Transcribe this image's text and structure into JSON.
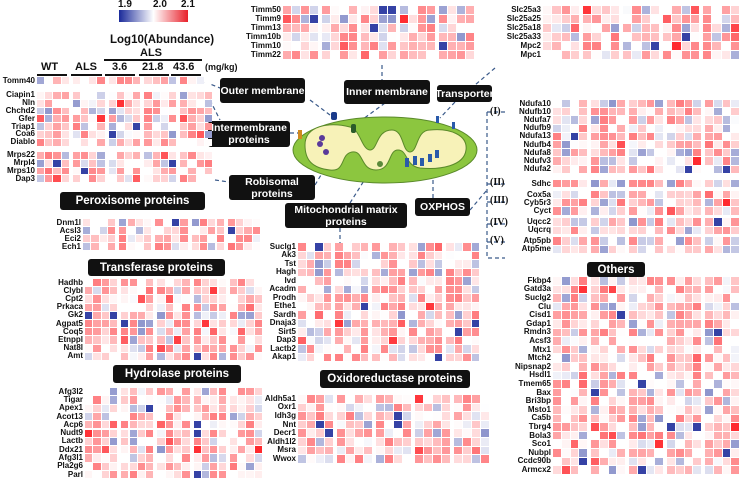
{
  "legend": {
    "min": "1.9",
    "mid": "2.0",
    "max": "2.1",
    "title": "Log10(Abundance)",
    "low_color": "#1a2a9a",
    "mid_color": "#ffffff",
    "high_color": "#e8202a"
  },
  "groups": {
    "als": "ALS",
    "wt": "WT",
    "als_ctrl": "ALS",
    "d1": "3.6",
    "d2": "21.8",
    "d3": "43.6",
    "unit": "(mg/kg)"
  },
  "boxes": {
    "outer": "Outer membrane",
    "inner": "Inner membrane",
    "transporter": "Transporter",
    "intermembrane": "Intermembrane proteins",
    "ribosomal": "Robisomal proteins",
    "matrix": "Mitochondrial matrix proteins",
    "oxphos": "OXPHOS",
    "peroxisome": "Peroxisome proteins",
    "transferase": "Transferase proteins",
    "hydrolase": "Hydrolase  proteins",
    "oxidoreductase": "Oxidoreductase proteins",
    "others": "Others"
  },
  "complexes": [
    "(I)",
    "(II)",
    "(III)",
    "(IV)",
    "(V)"
  ],
  "genes": {
    "outer": [
      "Tomm40"
    ],
    "intermembrane": [
      "Ciapin1",
      "Nln",
      "Chchd2",
      "Gfer",
      "Triap1",
      "Coa6",
      "Diablo"
    ],
    "ribosomal": [
      "Mrps22",
      "Mrpl4",
      "Mrps10",
      "Dap3"
    ],
    "peroxisome": [
      "Dnm1l",
      "Acsl3",
      "Eci2",
      "Ech1"
    ],
    "transferase": [
      "Hadhb",
      "Clybl",
      "Cpt2",
      "Prkaca",
      "Gk2",
      "Agpat5",
      "Coq5",
      "Etnppl",
      "Nat8l",
      "Amt"
    ],
    "hydrolase": [
      "Afg3l2",
      "Tigar",
      "Apex1",
      "Acot13",
      "Acp6",
      "Nudt9",
      "Lactb",
      "Ddx21",
      "Afg3l1",
      "Pla2g6",
      "Parl"
    ],
    "inner": [
      "Timm50",
      "Timm9",
      "Timm13",
      "Timm10b",
      "Timm10",
      "Timm22"
    ],
    "transporter": [
      "Slc25a3",
      "Slc25a25",
      "Slc25a18",
      "Slc25a33",
      "Mpc2",
      "Mpc1"
    ],
    "c1": [
      "Ndufa10",
      "Ndufb10",
      "Ndufa7",
      "Ndufb9",
      "Ndufa13",
      "Ndufb4",
      "Ndufa8",
      "Ndufv3",
      "Ndufa2"
    ],
    "c2": [
      "Sdhc"
    ],
    "c3": [
      "Cox5a",
      "Cyb5r3",
      "Cyct"
    ],
    "c4": [
      "Uqcc2",
      "Uqcrq"
    ],
    "c5": [
      "Atp5pb",
      "Atp5me"
    ],
    "matrix": [
      "Suclg1",
      "Ak3",
      "Tst",
      "Hagh",
      "Ivd",
      "Acadm",
      "Prodh",
      "Ethe1",
      "Sardh",
      "Dnaja3",
      "Sirt5",
      "Dap3",
      "Lactb2",
      "Akap1"
    ],
    "oxidoreductase": [
      "Aldh5a1",
      "Oxr1",
      "Idh3g",
      "Nnt",
      "Decr1",
      "Aldh1l2",
      "Msra",
      "Wwox"
    ],
    "others": [
      "Fkbp4",
      "Gatd3a",
      "Suclg2",
      "Clu",
      "Cisd1",
      "Gdap1",
      "Rmdn3",
      "Acsf3",
      "Mtx1",
      "Mtch2",
      "Nipsnap2",
      "Hsdl1",
      "Tmem65",
      "Bax",
      "Bri3bp",
      "Msto1",
      "Ca5b",
      "Tbrg4",
      "Bola3",
      "Sco1",
      "Nubpl",
      "Ccdc90b",
      "Armcx2"
    ]
  }
}
